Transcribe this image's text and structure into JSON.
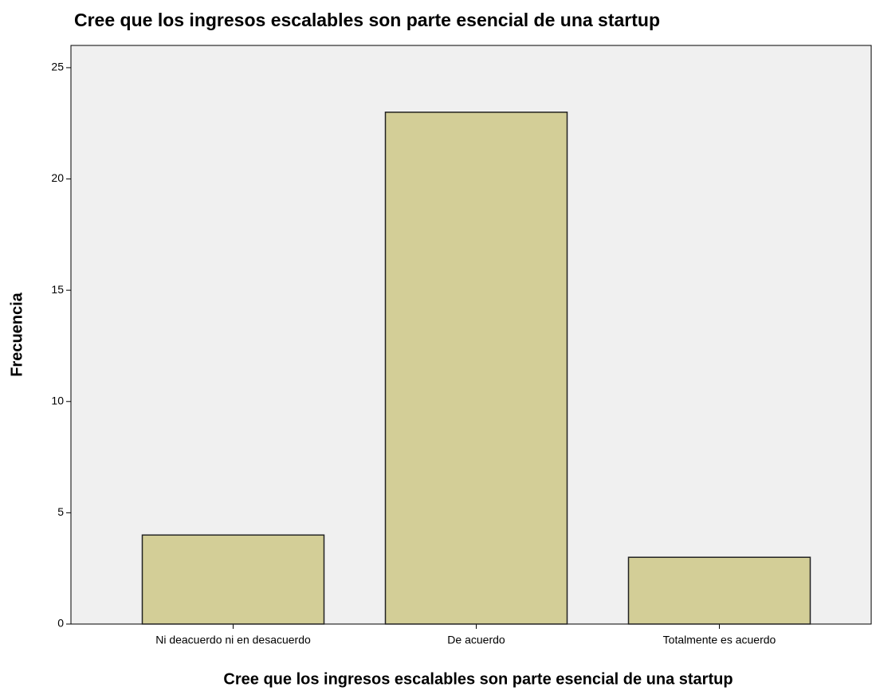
{
  "chart_data": {
    "type": "bar",
    "title": "Cree que los ingresos escalables son parte esencial de una startup",
    "x_label": "Cree que los ingresos escalables son parte esencial de una startup",
    "y_label": "Frecuencia",
    "categories": [
      "Ni deacuerdo ni en desacuerdo",
      "De acuerdo",
      "Totalmente es acuerdo"
    ],
    "values": [
      4,
      23,
      3
    ],
    "color": "#d3ce97",
    "ylim": [
      0,
      26
    ],
    "yticks": [
      0,
      5,
      10,
      15,
      20,
      25
    ],
    "grid": false
  }
}
